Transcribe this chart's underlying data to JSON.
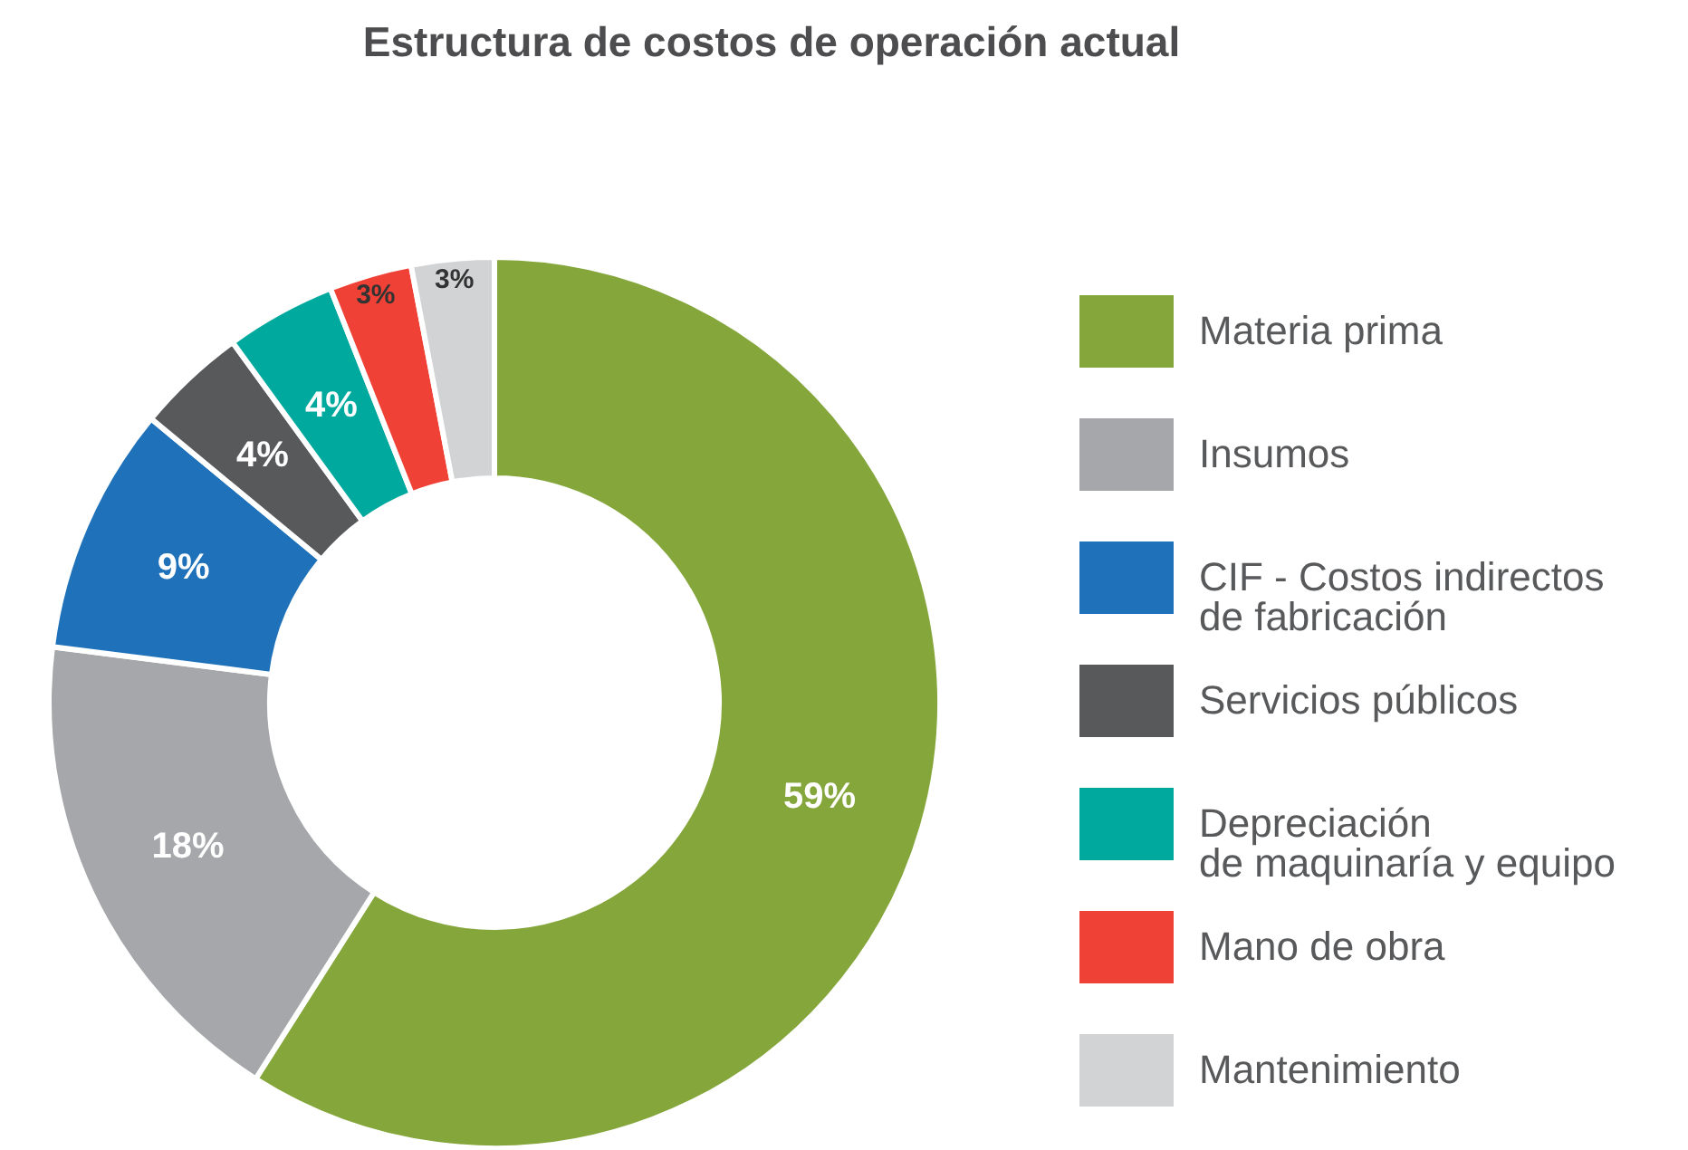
{
  "chart_data": {
    "type": "donut",
    "title": "Estructura de costos de operación actual",
    "categories": [
      "Materia prima",
      "Insumos",
      "CIF - Costos indirectos\nde fabricación",
      "Servicios públicos",
      "Depreciación\nde maquinaría y equipo",
      "Mano de obra",
      "Mantenimiento"
    ],
    "values": [
      59,
      18,
      9,
      4,
      4,
      3,
      3
    ],
    "value_labels": [
      "59%",
      "18%",
      "9%",
      "4%",
      "4%",
      "3%",
      "3%"
    ],
    "colors": [
      "#84a63b",
      "#a6a7aa",
      "#1f72ba",
      "#58595b",
      "#00a99d",
      "#ef4136",
      "#d1d3d4"
    ],
    "legend": "right"
  }
}
